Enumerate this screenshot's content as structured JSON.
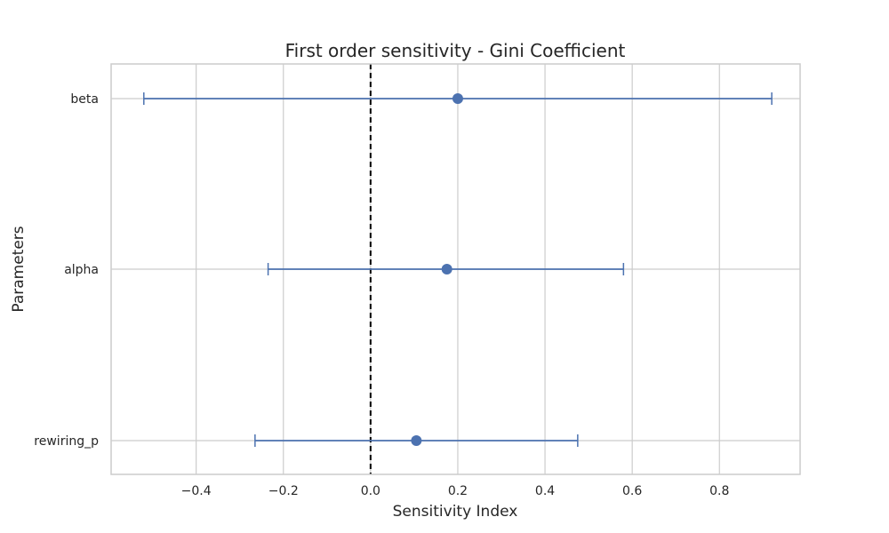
{
  "chart_data": {
    "type": "errorbar",
    "title": "First order sensitivity - Gini Coefficient",
    "xlabel": "Sensitivity Index",
    "ylabel": "Parameters",
    "categories": [
      "beta",
      "alpha",
      "rewiring_p"
    ],
    "values": [
      0.2,
      0.175,
      0.105
    ],
    "ci_lower": [
      -0.52,
      -0.235,
      -0.265
    ],
    "ci_upper": [
      0.92,
      0.58,
      0.475
    ],
    "xlim": [
      -0.595,
      0.985
    ],
    "xticks": [
      -0.4,
      -0.2,
      0.0,
      0.2,
      0.4,
      0.6,
      0.8
    ],
    "xtick_labels": [
      "−0.4",
      "−0.2",
      "0.0",
      "0.2",
      "0.4",
      "0.6",
      "0.8"
    ],
    "reference_line": {
      "x": 0.0,
      "style": "dashed",
      "color": "#000000"
    },
    "grid": true,
    "colors": {
      "series": "#4c72b0",
      "grid": "#cccccc",
      "frame": "#cccccc",
      "text": "#262626"
    }
  }
}
